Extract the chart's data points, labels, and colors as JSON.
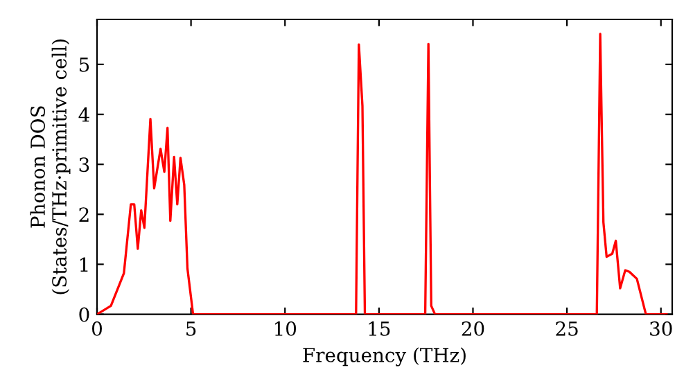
{
  "chart_data": {
    "type": "line",
    "xlabel": "Frequency (THz)",
    "ylabel": "Phonon DOS\n(States/THz·primitive cell)",
    "series": [
      {
        "color": "#ff0000",
        "x": [
          0,
          0.74,
          1.43,
          1.8,
          1.98,
          2.17,
          2.35,
          2.52,
          2.84,
          3.04,
          3.38,
          3.58,
          3.75,
          3.9,
          4.1,
          4.27,
          4.44,
          4.64,
          4.81,
          5.11,
          13.78,
          13.93,
          14.12,
          14.25,
          17.46,
          17.63,
          17.78,
          17.98,
          26.59,
          26.77,
          26.94,
          27.11,
          27.41,
          27.6,
          27.83,
          28.1,
          28.32,
          28.72,
          29.2,
          30.3
        ],
        "values": [
          0,
          0.17,
          0.82,
          2.2,
          2.2,
          1.31,
          2.08,
          1.73,
          3.91,
          2.52,
          3.31,
          2.85,
          3.73,
          1.87,
          3.15,
          2.2,
          3.13,
          2.59,
          0.92,
          0,
          0,
          5.4,
          4.17,
          0,
          0,
          5.41,
          0.17,
          0,
          0,
          5.61,
          1.84,
          1.15,
          1.21,
          1.47,
          0.52,
          0.88,
          0.85,
          0.71,
          0,
          0
        ]
      }
    ],
    "xlim": [
      0,
      30.6
    ],
    "ylim": [
      0,
      5.9
    ],
    "xticks": [
      0,
      5,
      10,
      15,
      20,
      25,
      30
    ],
    "yticks": [
      0,
      1,
      2,
      3,
      4,
      5
    ],
    "grid": false,
    "legend": false,
    "marker": "none",
    "line_style": "solid"
  }
}
